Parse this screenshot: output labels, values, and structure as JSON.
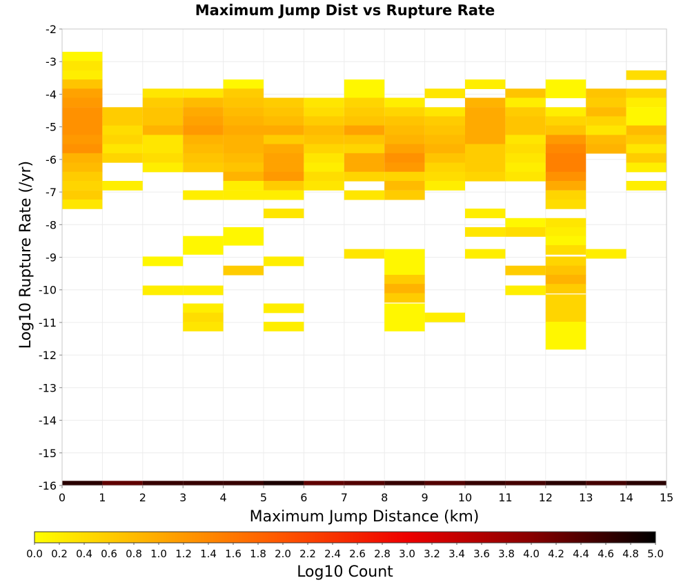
{
  "chart_data": {
    "type": "heatmap",
    "title": "Maximum Jump Dist vs Rupture Rate",
    "xlabel": "Maximum Jump Distance (km)",
    "ylabel": "Log10 Rupture Rate (/yr)",
    "xlim": [
      0,
      15
    ],
    "ylim": [
      -16,
      -2
    ],
    "x_ticks": [
      0,
      1,
      2,
      3,
      4,
      5,
      6,
      7,
      8,
      9,
      10,
      11,
      12,
      13,
      14,
      15
    ],
    "y_ticks": [
      -2,
      -3,
      -4,
      -5,
      -6,
      -7,
      -8,
      -9,
      -10,
      -11,
      -12,
      -13,
      -14,
      -15,
      -16
    ],
    "grid": true,
    "colorbar": {
      "label": "Log10 Count",
      "range": [
        0,
        5
      ],
      "ticks": [
        "0.0",
        "0.2",
        "0.4",
        "0.6",
        "0.8",
        "1.0",
        "1.2",
        "1.4",
        "1.6",
        "1.8",
        "2.0",
        "2.2",
        "2.4",
        "2.6",
        "2.8",
        "3.0",
        "3.2",
        "3.4",
        "3.6",
        "3.8",
        "4.0",
        "4.2",
        "4.4",
        "4.6",
        "4.8",
        "5.0"
      ],
      "colors": [
        "#ffff00",
        "#ffaa00",
        "#ff5500",
        "#ee0000",
        "#880000",
        "#000000"
      ]
    },
    "bin": {
      "x_width": 1,
      "y_height": 0.283
    },
    "columns": [
      {
        "x": 0,
        "cells": [
          [
            -2.84,
            0.1
          ],
          [
            -3.12,
            0.3
          ],
          [
            -3.41,
            0.2
          ],
          [
            -3.69,
            0.7
          ],
          [
            -3.97,
            1.1
          ],
          [
            -4.25,
            1.2
          ],
          [
            -4.54,
            1.3
          ],
          [
            -4.82,
            1.3
          ],
          [
            -5.1,
            1.3
          ],
          [
            -5.39,
            1.2
          ],
          [
            -5.67,
            1.3
          ],
          [
            -5.95,
            0.9
          ],
          [
            -6.24,
            0.8
          ],
          [
            -6.52,
            0.6
          ],
          [
            -6.8,
            0.5
          ],
          [
            -7.09,
            0.6
          ],
          [
            -7.37,
            0.3
          ],
          [
            -16.0,
            4.7
          ]
        ]
      },
      {
        "x": 1,
        "cells": [
          [
            -4.54,
            0.6
          ],
          [
            -4.82,
            0.6
          ],
          [
            -5.1,
            0.4
          ],
          [
            -5.39,
            0.5
          ],
          [
            -5.67,
            0.3
          ],
          [
            -5.95,
            0.5
          ],
          [
            -6.8,
            0.2
          ],
          [
            -16.0,
            4.3
          ]
        ]
      },
      {
        "x": 2,
        "cells": [
          [
            -3.97,
            0.3
          ],
          [
            -4.25,
            0.6
          ],
          [
            -4.54,
            0.7
          ],
          [
            -4.82,
            0.7
          ],
          [
            -5.1,
            0.9
          ],
          [
            -5.39,
            0.3
          ],
          [
            -5.67,
            0.3
          ],
          [
            -5.95,
            0.4
          ],
          [
            -6.24,
            0.2
          ],
          [
            -9.12,
            0.1
          ],
          [
            -10.01,
            0.2
          ],
          [
            -16.0,
            4.6
          ]
        ]
      },
      {
        "x": 3,
        "cells": [
          [
            -3.97,
            0.3
          ],
          [
            -4.25,
            0.8
          ],
          [
            -4.54,
            1.0
          ],
          [
            -4.82,
            1.1
          ],
          [
            -5.1,
            1.2
          ],
          [
            -5.39,
            0.9
          ],
          [
            -5.67,
            0.8
          ],
          [
            -5.95,
            0.7
          ],
          [
            -6.24,
            0.6
          ],
          [
            -7.09,
            0.2
          ],
          [
            -8.49,
            0.1
          ],
          [
            -8.77,
            0.1
          ],
          [
            -10.01,
            0.2
          ],
          [
            -10.56,
            0.2
          ],
          [
            -10.84,
            0.4
          ],
          [
            -11.12,
            0.3
          ],
          [
            -16.0,
            4.6
          ]
        ]
      },
      {
        "x": 4,
        "cells": [
          [
            -3.69,
            0.1
          ],
          [
            -3.97,
            0.6
          ],
          [
            -4.25,
            0.7
          ],
          [
            -4.54,
            0.8
          ],
          [
            -4.82,
            0.9
          ],
          [
            -5.1,
            1.0
          ],
          [
            -5.39,
            0.9
          ],
          [
            -5.67,
            0.9
          ],
          [
            -5.95,
            0.8
          ],
          [
            -6.24,
            0.7
          ],
          [
            -6.52,
            0.9
          ],
          [
            -6.8,
            0.2
          ],
          [
            -7.09,
            0.2
          ],
          [
            -8.22,
            0.1
          ],
          [
            -8.49,
            0.1
          ],
          [
            -9.4,
            0.6
          ],
          [
            -16.0,
            4.6
          ]
        ]
      },
      {
        "x": 5,
        "cells": [
          [
            -4.25,
            0.6
          ],
          [
            -4.54,
            0.7
          ],
          [
            -4.82,
            0.8
          ],
          [
            -5.1,
            1.0
          ],
          [
            -5.39,
            0.6
          ],
          [
            -5.67,
            1.0
          ],
          [
            -5.95,
            1.1
          ],
          [
            -6.24,
            1.1
          ],
          [
            -6.52,
            1.2
          ],
          [
            -6.8,
            0.6
          ],
          [
            -7.09,
            0.2
          ],
          [
            -7.65,
            0.3
          ],
          [
            -9.12,
            0.2
          ],
          [
            -10.56,
            0.2
          ],
          [
            -11.12,
            0.2
          ],
          [
            -16.0,
            4.8
          ]
        ]
      },
      {
        "x": 6,
        "cells": [
          [
            -4.25,
            0.3
          ],
          [
            -4.54,
            0.4
          ],
          [
            -4.82,
            0.6
          ],
          [
            -5.1,
            0.8
          ],
          [
            -5.39,
            0.7
          ],
          [
            -5.67,
            0.5
          ],
          [
            -5.95,
            0.3
          ],
          [
            -6.24,
            0.2
          ],
          [
            -6.52,
            0.4
          ],
          [
            -6.8,
            0.3
          ],
          [
            -16.0,
            4.3
          ]
        ]
      },
      {
        "x": 7,
        "cells": [
          [
            -3.69,
            0.1
          ],
          [
            -3.97,
            0.1
          ],
          [
            -4.25,
            0.5
          ],
          [
            -4.54,
            0.6
          ],
          [
            -4.82,
            0.7
          ],
          [
            -5.1,
            1.1
          ],
          [
            -5.39,
            0.7
          ],
          [
            -5.67,
            0.5
          ],
          [
            -5.95,
            1.0
          ],
          [
            -6.24,
            1.0
          ],
          [
            -6.52,
            0.5
          ],
          [
            -7.09,
            0.3
          ],
          [
            -8.89,
            0.3
          ],
          [
            -16.0,
            4.4
          ]
        ]
      },
      {
        "x": 8,
        "cells": [
          [
            -4.25,
            0.2
          ],
          [
            -4.54,
            0.5
          ],
          [
            -4.82,
            0.7
          ],
          [
            -5.1,
            0.8
          ],
          [
            -5.39,
            0.9
          ],
          [
            -5.67,
            1.1
          ],
          [
            -5.95,
            1.3
          ],
          [
            -6.24,
            1.2
          ],
          [
            -6.52,
            0.5
          ],
          [
            -6.8,
            0.8
          ],
          [
            -7.09,
            0.6
          ],
          [
            -8.89,
            0.1
          ],
          [
            -9.12,
            0.1
          ],
          [
            -9.4,
            0.1
          ],
          [
            -9.68,
            0.6
          ],
          [
            -9.96,
            0.9
          ],
          [
            -10.24,
            0.6
          ],
          [
            -10.56,
            0.1
          ],
          [
            -10.84,
            0.1
          ],
          [
            -11.12,
            0.1
          ],
          [
            -16.0,
            4.6
          ]
        ]
      },
      {
        "x": 9,
        "cells": [
          [
            -3.97,
            0.3
          ],
          [
            -4.54,
            0.3
          ],
          [
            -4.82,
            0.6
          ],
          [
            -5.1,
            0.7
          ],
          [
            -5.39,
            0.8
          ],
          [
            -5.67,
            0.9
          ],
          [
            -5.95,
            0.7
          ],
          [
            -6.24,
            0.5
          ],
          [
            -6.52,
            0.4
          ],
          [
            -6.8,
            0.2
          ],
          [
            -10.84,
            0.2
          ],
          [
            -16.0,
            4.4
          ]
        ]
      },
      {
        "x": 10,
        "cells": [
          [
            -3.69,
            0.2
          ],
          [
            -4.25,
            0.9
          ],
          [
            -4.54,
            1.0
          ],
          [
            -4.82,
            1.0
          ],
          [
            -5.1,
            1.0
          ],
          [
            -5.39,
            1.0
          ],
          [
            -5.67,
            0.6
          ],
          [
            -5.95,
            0.6
          ],
          [
            -6.24,
            0.6
          ],
          [
            -6.52,
            0.5
          ],
          [
            -7.65,
            0.2
          ],
          [
            -8.22,
            0.3
          ],
          [
            -8.89,
            0.2
          ],
          [
            -16.0,
            4.6
          ]
        ]
      },
      {
        "x": 11,
        "cells": [
          [
            -3.97,
            0.7
          ],
          [
            -4.25,
            0.2
          ],
          [
            -4.54,
            0.6
          ],
          [
            -4.82,
            0.7
          ],
          [
            -5.1,
            0.7
          ],
          [
            -5.39,
            0.3
          ],
          [
            -5.67,
            0.4
          ],
          [
            -5.95,
            0.3
          ],
          [
            -6.24,
            0.2
          ],
          [
            -6.52,
            0.3
          ],
          [
            -7.94,
            0.1
          ],
          [
            -8.22,
            0.4
          ],
          [
            -9.4,
            0.6
          ],
          [
            -10.01,
            0.2
          ],
          [
            -16.0,
            4.5
          ]
        ]
      },
      {
        "x": 12,
        "cells": [
          [
            -3.69,
            0.1
          ],
          [
            -3.97,
            0.1
          ],
          [
            -4.54,
            0.2
          ],
          [
            -4.82,
            0.5
          ],
          [
            -5.1,
            0.7
          ],
          [
            -5.39,
            1.2
          ],
          [
            -5.67,
            1.4
          ],
          [
            -5.95,
            1.5
          ],
          [
            -6.24,
            1.5
          ],
          [
            -6.52,
            1.3
          ],
          [
            -6.8,
            1.0
          ],
          [
            -7.09,
            0.5
          ],
          [
            -7.37,
            0.4
          ],
          [
            -7.94,
            0.3
          ],
          [
            -8.22,
            0.2
          ],
          [
            -8.49,
            0.1
          ],
          [
            -8.77,
            0.4
          ],
          [
            -9.12,
            0.5
          ],
          [
            -9.4,
            0.7
          ],
          [
            -9.68,
            0.9
          ],
          [
            -9.96,
            0.6
          ],
          [
            -10.28,
            0.5
          ],
          [
            -10.56,
            0.5
          ],
          [
            -10.84,
            0.5
          ],
          [
            -11.12,
            0.1
          ],
          [
            -11.4,
            0.1
          ],
          [
            -11.68,
            0.1
          ],
          [
            -16.0,
            4.7
          ]
        ]
      },
      {
        "x": 13,
        "cells": [
          [
            -3.97,
            0.7
          ],
          [
            -4.25,
            0.6
          ],
          [
            -4.54,
            0.8
          ],
          [
            -4.82,
            0.5
          ],
          [
            -5.1,
            0.3
          ],
          [
            -5.39,
            0.8
          ],
          [
            -5.67,
            0.9
          ],
          [
            -8.89,
            0.2
          ],
          [
            -16.0,
            4.5
          ]
        ]
      },
      {
        "x": 14,
        "cells": [
          [
            -3.41,
            0.4
          ],
          [
            -3.97,
            0.5
          ],
          [
            -4.25,
            0.2
          ],
          [
            -4.54,
            0.1
          ],
          [
            -4.82,
            0.1
          ],
          [
            -5.1,
            0.8
          ],
          [
            -5.39,
            0.6
          ],
          [
            -5.67,
            0.3
          ],
          [
            -5.95,
            0.6
          ],
          [
            -6.24,
            0.2
          ],
          [
            -6.8,
            0.2
          ],
          [
            -16.0,
            4.7
          ]
        ]
      }
    ]
  }
}
